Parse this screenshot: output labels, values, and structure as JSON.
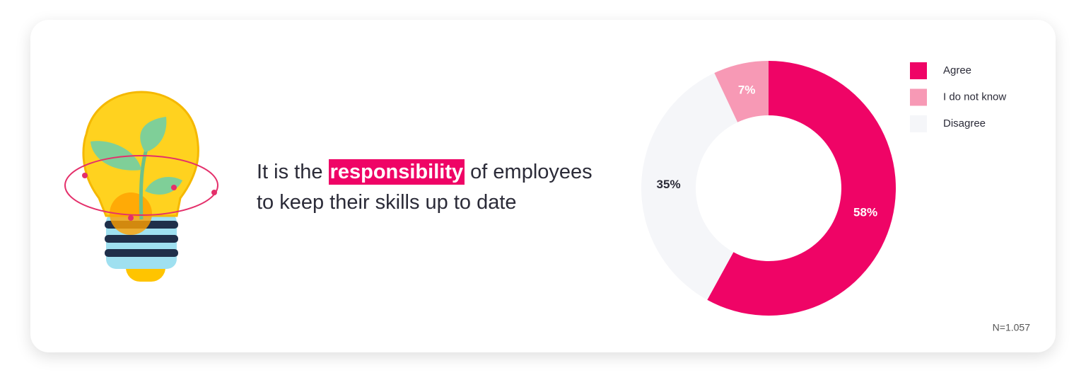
{
  "statement": {
    "before": "It is the",
    "highlight": "responsibility",
    "after_line1": "of employees",
    "after_line2": "to keep their skills up to date"
  },
  "chart_data": {
    "type": "donut",
    "categories": [
      "Agree",
      "I do not know",
      "Disagree"
    ],
    "values": [
      58,
      7,
      35
    ],
    "value_labels": [
      "58%",
      "7%",
      "35%"
    ],
    "colors": [
      "#ef0466",
      "#f799b5",
      "#f5f6f9"
    ],
    "note": "N=1.057"
  }
}
